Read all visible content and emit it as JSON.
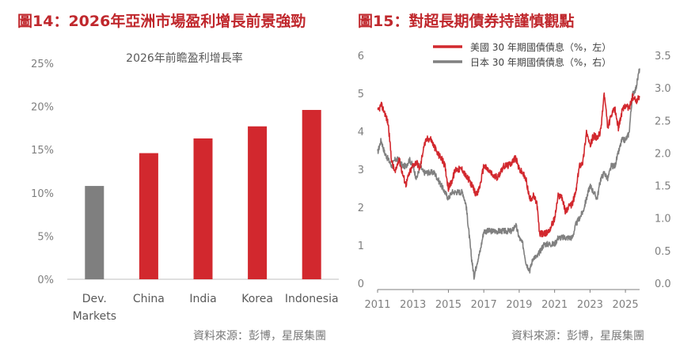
{
  "figures": [
    {
      "title": "圖14：2026年亞洲市場盈利增長前景強勁",
      "source": "資料來源：彭博，星展集團"
    },
    {
      "title": "圖15：對超長期債券持謹慎觀點",
      "source": "資料來源：彭博，星展集團"
    }
  ],
  "chart_data": [
    {
      "type": "bar",
      "title": "2026年前瞻盈利增長率",
      "categories": [
        "Dev.\nMarkets",
        "China",
        "India",
        "Korea",
        "Indonesia"
      ],
      "values": [
        10.8,
        14.6,
        16.3,
        17.7,
        19.6
      ],
      "bar_colors": [
        "#7f7f7f",
        "#d2282e",
        "#d2282e",
        "#d2282e",
        "#d2282e"
      ],
      "ylim": [
        0,
        25
      ],
      "yticks": [
        "0%",
        "5%",
        "10%",
        "15%",
        "20%",
        "25%"
      ],
      "grid": false
    },
    {
      "type": "line",
      "legend_position": "top-center",
      "xlim": [
        2011,
        2025.8
      ],
      "xticks": [
        "2011",
        "2013",
        "2015",
        "2017",
        "2019",
        "2021",
        "2023",
        "2025"
      ],
      "left_axis": {
        "ylim": [
          0,
          6
        ],
        "ticks": [
          "0",
          "1",
          "2",
          "3",
          "4",
          "5",
          "6"
        ]
      },
      "right_axis": {
        "ylim": [
          0,
          3.5
        ],
        "ticks": [
          "0.0",
          "0.5",
          "1.0",
          "1.5",
          "2.0",
          "2.5",
          "3.0",
          "3.5"
        ]
      },
      "series": [
        {
          "name": "美國 30 年期國債債息（%，左）",
          "axis": "left",
          "color": "#d2282e",
          "x": [
            2011.0,
            2011.2,
            2011.4,
            2011.6,
            2011.8,
            2012.0,
            2012.2,
            2012.4,
            2012.6,
            2012.8,
            2013.0,
            2013.2,
            2013.4,
            2013.6,
            2013.8,
            2014.0,
            2014.2,
            2014.4,
            2014.6,
            2014.8,
            2015.0,
            2015.2,
            2015.4,
            2015.6,
            2015.8,
            2016.0,
            2016.2,
            2016.4,
            2016.6,
            2016.8,
            2017.0,
            2017.2,
            2017.4,
            2017.6,
            2017.8,
            2018.0,
            2018.2,
            2018.4,
            2018.6,
            2018.8,
            2019.0,
            2019.2,
            2019.4,
            2019.6,
            2019.8,
            2020.0,
            2020.15,
            2020.3,
            2020.5,
            2020.7,
            2020.9,
            2021.0,
            2021.2,
            2021.4,
            2021.6,
            2021.8,
            2022.0,
            2022.2,
            2022.4,
            2022.6,
            2022.8,
            2023.0,
            2023.2,
            2023.4,
            2023.6,
            2023.8,
            2024.0,
            2024.2,
            2024.4,
            2024.6,
            2024.8,
            2025.0,
            2025.2,
            2025.4,
            2025.6,
            2025.8
          ],
          "values": [
            4.5,
            4.7,
            4.5,
            4.2,
            3.2,
            2.9,
            3.3,
            2.9,
            2.6,
            2.9,
            3.1,
            3.2,
            3.0,
            3.6,
            3.8,
            3.8,
            3.6,
            3.4,
            3.3,
            3.1,
            2.5,
            2.7,
            3.0,
            3.0,
            3.0,
            2.8,
            2.7,
            2.5,
            2.3,
            2.6,
            3.1,
            3.0,
            2.9,
            2.8,
            2.8,
            3.0,
            3.1,
            3.1,
            3.2,
            3.3,
            3.0,
            2.9,
            2.7,
            2.2,
            2.3,
            2.1,
            1.3,
            1.3,
            1.3,
            1.4,
            1.6,
            1.7,
            2.3,
            2.3,
            1.9,
            2.0,
            2.1,
            2.4,
            3.1,
            3.2,
            4.0,
            3.6,
            3.9,
            3.8,
            4.0,
            5.0,
            4.1,
            4.4,
            4.6,
            4.1,
            4.5,
            4.7,
            4.6,
            4.9,
            4.8,
            4.9
          ]
        },
        {
          "name": "日本 30 年期國債債息（%，右）",
          "axis": "right",
          "color": "#808080",
          "x": [
            2011.0,
            2011.2,
            2011.4,
            2011.6,
            2011.8,
            2012.0,
            2012.2,
            2012.4,
            2012.6,
            2012.8,
            2013.0,
            2013.2,
            2013.4,
            2013.6,
            2013.8,
            2014.0,
            2014.2,
            2014.4,
            2014.6,
            2014.8,
            2015.0,
            2015.2,
            2015.4,
            2015.6,
            2015.8,
            2016.0,
            2016.15,
            2016.3,
            2016.45,
            2016.6,
            2016.8,
            2017.0,
            2017.2,
            2017.4,
            2017.6,
            2017.8,
            2018.0,
            2018.2,
            2018.4,
            2018.6,
            2018.8,
            2019.0,
            2019.2,
            2019.4,
            2019.6,
            2019.8,
            2020.0,
            2020.2,
            2020.4,
            2020.6,
            2020.8,
            2021.0,
            2021.2,
            2021.4,
            2021.6,
            2021.8,
            2022.0,
            2022.2,
            2022.4,
            2022.6,
            2022.8,
            2023.0,
            2023.2,
            2023.4,
            2023.6,
            2023.8,
            2024.0,
            2024.2,
            2024.4,
            2024.6,
            2024.8,
            2025.0,
            2025.2,
            2025.4,
            2025.6,
            2025.8
          ],
          "values": [
            2.0,
            2.2,
            2.0,
            1.9,
            1.8,
            1.9,
            1.9,
            1.8,
            1.8,
            1.9,
            1.8,
            1.6,
            1.8,
            1.7,
            1.7,
            1.7,
            1.7,
            1.6,
            1.5,
            1.4,
            1.3,
            1.4,
            1.4,
            1.4,
            1.4,
            1.2,
            0.8,
            0.4,
            0.1,
            0.3,
            0.5,
            0.8,
            0.8,
            0.8,
            0.8,
            0.8,
            0.8,
            0.8,
            0.8,
            0.8,
            0.9,
            0.7,
            0.6,
            0.3,
            0.2,
            0.4,
            0.4,
            0.5,
            0.6,
            0.6,
            0.6,
            0.6,
            0.7,
            0.7,
            0.7,
            0.7,
            0.7,
            0.9,
            1.0,
            1.1,
            1.3,
            1.5,
            1.4,
            1.3,
            1.6,
            1.7,
            1.6,
            1.8,
            1.8,
            2.0,
            2.2,
            2.2,
            2.3,
            2.9,
            3.0,
            3.3
          ]
        }
      ]
    }
  ]
}
